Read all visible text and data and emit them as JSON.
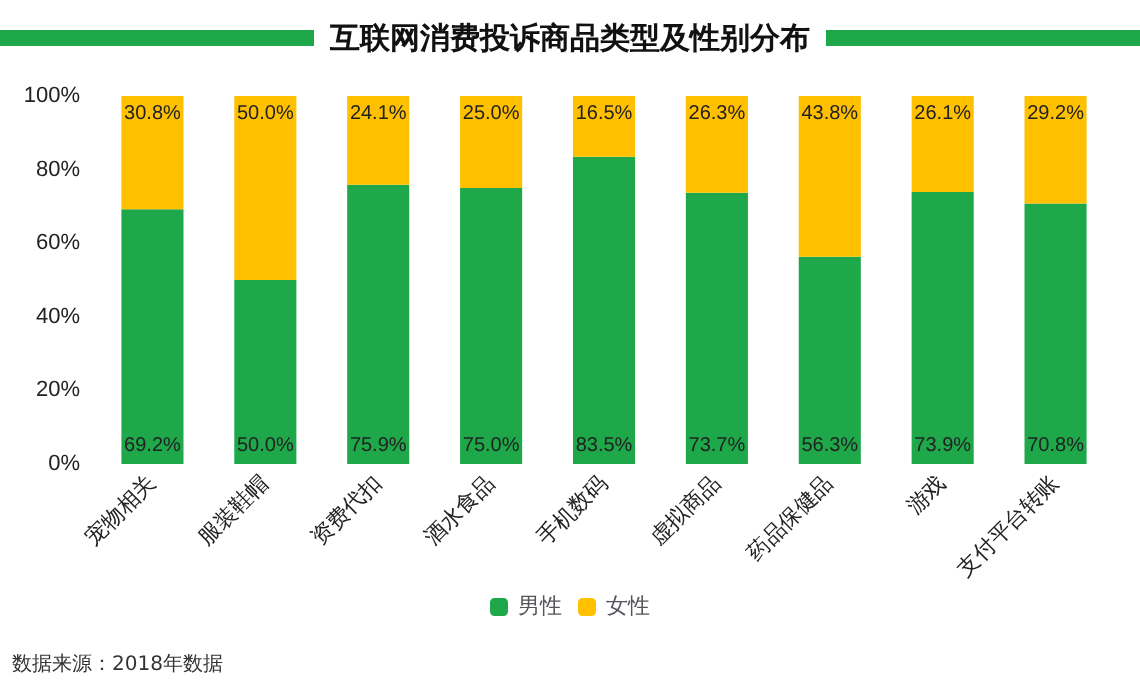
{
  "chart_data": {
    "type": "bar",
    "title": "互联网消费投诉商品类型及性别分布",
    "stacked": true,
    "legend": "bottom",
    "grid": false,
    "categories": [
      "宠物相关",
      "服装鞋帽",
      "资费代扣",
      "酒水食品",
      "手机数码",
      "虚拟商品",
      "药品保健品",
      "游戏",
      "支付平台转账"
    ],
    "series": [
      {
        "name": "男性",
        "color": "#1ea84a",
        "values": [
          69.2,
          50.0,
          75.9,
          75.0,
          83.5,
          73.7,
          56.3,
          73.9,
          70.8
        ],
        "value_labels": [
          "69.2%",
          "50.0%",
          "75.9%",
          "75.0%",
          "83.5%",
          "73.7%",
          "56.3%",
          "73.9%",
          "70.8%"
        ]
      },
      {
        "name": "女性",
        "color": "#ffc000",
        "values": [
          30.8,
          50.0,
          24.1,
          25.0,
          16.5,
          26.3,
          43.8,
          26.1,
          29.2
        ],
        "value_labels": [
          "30.8%",
          "50.0%",
          "24.1%",
          "25.0%",
          "16.5%",
          "26.3%",
          "43.8%",
          "26.1%",
          "29.2%"
        ]
      }
    ],
    "ylim": [
      0,
      100
    ],
    "yticks": [
      {
        "value": 0,
        "label": "0%"
      },
      {
        "value": 20,
        "label": "20%"
      },
      {
        "value": 40,
        "label": "40%"
      },
      {
        "value": 60,
        "label": "60%"
      },
      {
        "value": 80,
        "label": "80%"
      },
      {
        "value": 100,
        "label": "100%"
      }
    ],
    "annotations": [
      "数据来源：2018年数据"
    ]
  }
}
